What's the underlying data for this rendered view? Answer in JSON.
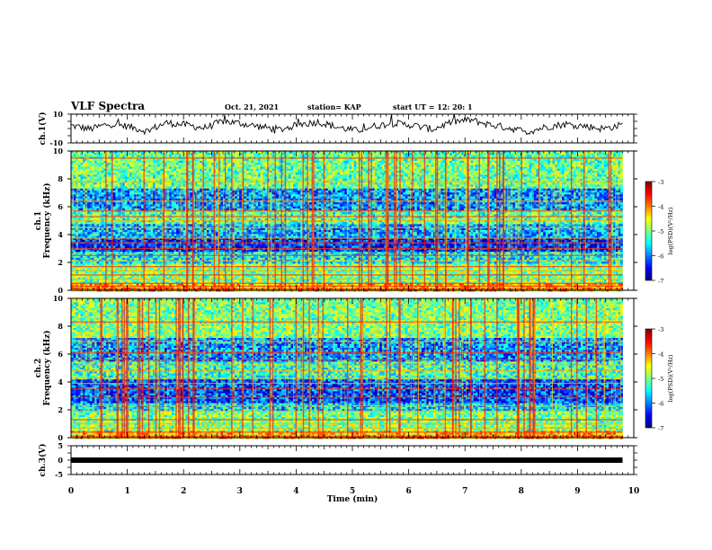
{
  "header": {
    "title": "VLF Spectra",
    "date": "Oct. 21, 2021",
    "station": "station= KAP",
    "start": "start  UT =   12: 20: 1"
  },
  "colors": {
    "jet": [
      "#00007f",
      "#0000ff",
      "#007fff",
      "#00ffff",
      "#7fff7f",
      "#ffff00",
      "#ff7f00",
      "#ff0000",
      "#7f0000"
    ]
  },
  "chart_data": [
    {
      "type": "line",
      "panel": "ch1-waveform",
      "ylabel": "ch.1(V)",
      "ylim": [
        -10,
        10
      ],
      "yticks": [
        "10",
        "-10"
      ],
      "xlim": [
        0,
        10
      ],
      "series": [
        {
          "values": [
            2.1,
            -0.4,
            3.2,
            1.5,
            -1.8,
            4.0,
            2.6,
            0.3,
            5.1,
            3.4,
            1.1,
            -0.8,
            2.9,
            4.6,
            0.9,
            -1.5,
            1.8,
            3.7,
            2.2,
            -0.6,
            4.4,
            6.0,
            2.7,
            0.5,
            -2.3,
            1.2,
            3.0,
            1.7,
            -0.2,
            2.5
          ]
        }
      ]
    },
    {
      "type": "heatmap",
      "panel": "ch1-spectrogram",
      "ylabel": "ch.1\nFrequency (kHz)",
      "ylim": [
        0,
        10
      ],
      "yticks": [
        "0",
        "2",
        "4",
        "6",
        "8",
        "10"
      ],
      "xlim": [
        0,
        9.8
      ],
      "colorbar": {
        "label": "log(PSD)(V²/Hz)",
        "range": [
          -7,
          -3
        ],
        "ticks": [
          "-3",
          "-4",
          "-5",
          "-6",
          "-7"
        ]
      },
      "bands": [
        {
          "from": 0.0,
          "to": 0.6,
          "level": -4.2
        },
        {
          "from": 0.6,
          "to": 2.0,
          "level": -5.0
        },
        {
          "from": 2.0,
          "to": 2.8,
          "level": -5.5
        },
        {
          "from": 2.8,
          "to": 3.8,
          "level": -6.3
        },
        {
          "from": 3.8,
          "to": 4.8,
          "level": -5.8
        },
        {
          "from": 4.8,
          "to": 5.8,
          "level": -5.2
        },
        {
          "from": 5.8,
          "to": 7.4,
          "level": -5.9
        },
        {
          "from": 7.4,
          "to": 10.0,
          "level": -5.1
        }
      ],
      "lines_khz": [
        0.1,
        0.3,
        0.5,
        0.8,
        1.1,
        1.4,
        1.7,
        2.1,
        2.5,
        3.0,
        3.4,
        3.75,
        4.5,
        5.0,
        5.3,
        5.7,
        6.4,
        7.8,
        9.5
      ]
    },
    {
      "type": "heatmap",
      "panel": "ch2-spectrogram",
      "ylabel": "ch.2\nFrequency (kHz)",
      "ylim": [
        0,
        10
      ],
      "yticks": [
        "0",
        "2",
        "4",
        "6",
        "8",
        "10"
      ],
      "xlim": [
        0,
        9.8
      ],
      "colorbar": {
        "label": "log(PSD)(V²/Hz)",
        "range": [
          -7,
          -3
        ],
        "ticks": [
          "-3",
          "-4",
          "-5",
          "-6",
          "-7"
        ]
      },
      "bands": [
        {
          "from": 0.0,
          "to": 0.6,
          "level": -4.3
        },
        {
          "from": 0.6,
          "to": 2.0,
          "level": -5.0
        },
        {
          "from": 2.0,
          "to": 2.6,
          "level": -5.6
        },
        {
          "from": 2.6,
          "to": 4.2,
          "level": -6.2
        },
        {
          "from": 4.2,
          "to": 5.6,
          "level": -5.3
        },
        {
          "from": 5.6,
          "to": 7.2,
          "level": -5.9
        },
        {
          "from": 7.2,
          "to": 10.0,
          "level": -5.0
        }
      ],
      "lines_khz": [
        0.1,
        0.4,
        0.7,
        1.0,
        1.3,
        1.9,
        2.3,
        2.9,
        3.5,
        3.9,
        4.3,
        4.8,
        5.2,
        5.6,
        6.1,
        6.9,
        8.3
      ]
    },
    {
      "type": "line",
      "panel": "ch3-waveform",
      "ylabel": "ch.3(V)",
      "ylim": [
        -5,
        5
      ],
      "yticks": [
        "5",
        "0",
        "-5"
      ],
      "xlabel": "Time (min)",
      "xlim": [
        0,
        10
      ],
      "xticks": [
        "0",
        "1",
        "2",
        "3",
        "4",
        "5",
        "6",
        "7",
        "8",
        "9",
        "10"
      ],
      "series": [
        {
          "values": [
            0.0,
            0.0,
            0.0,
            0.0,
            0.0,
            0.0,
            0.0,
            0.0,
            0.0,
            0.0,
            0.0
          ]
        }
      ]
    }
  ]
}
